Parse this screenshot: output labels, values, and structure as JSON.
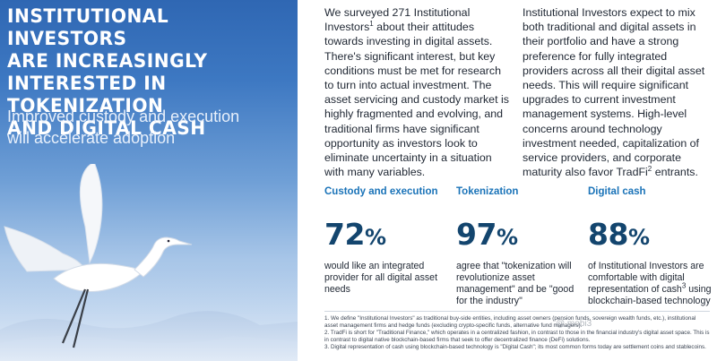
{
  "hero": {
    "title_lines": [
      "INSTITUTIONAL INVESTORS",
      "ARE INCREASINGLY",
      "INTERESTED IN TOKENIZATION",
      "AND DIGITAL CASH"
    ],
    "subtitle_lines": [
      "Improved custody and execution",
      "will accelerate adoption"
    ]
  },
  "intro": {
    "col1": {
      "p1": "We surveyed 271 Institutional Investors",
      "sup": "1",
      "p2": " about their attitudes towards investing in digital assets. There's significant interest, but key conditions must be met for research to turn into actual investment. The asset servicing and custody market is highly fragmented and evolving, and traditional firms have significant opportunity as investors look to eliminate uncertainty in a situation with many variables."
    },
    "col2": {
      "p1": "Institutional Investors expect to mix both traditional and digital assets in their portfolio and have a strong preference for fully integrated providers across all their digital asset needs. This will require significant upgrades to current investment management systems. High-level concerns around technology investment needed, capitalization of service providers, and corporate maturity also favor TradFi",
      "sup": "2",
      "p2": " entrants."
    }
  },
  "stats": [
    {
      "heading": "Custody and execution",
      "value": "72",
      "unit": "%",
      "desc": "would like an integrated provider for all digital asset needs"
    },
    {
      "heading": "Tokenization",
      "value": "97",
      "unit": "%",
      "desc": "agree that \"tokenization will revolutionize asset management\" and be \"good for the industry\""
    },
    {
      "heading": "Digital cash",
      "value": "88",
      "unit": "%",
      "desc_p1": "of Institutional Investors are comfortable with digital representation of cash",
      "desc_sup": "3",
      "desc_p2": " using blockchain-based technology"
    }
  ],
  "footnotes": [
    "1. We define \"Institutional Investors\" as traditional buy-side entities, including asset owners (pension funds, sovereign wealth funds, etc.), institutional asset management firms and hedge funds (excluding crypto-specific funds, alternative fund managers).",
    "2. TradFi is short for \"Traditional Finance,\" which operates in a centralized fashion, in contrast to those in the financial industry's digital asset space. This is in contrast to digital native blockchain-based firms that seek to offer decentralized finance (DeFi) solutions.",
    "3. Digital representation of cash using blockchain-based technology is \"Digital Cash\"; its most common forms today are settlement coins and stablecoins."
  ],
  "watermark": "@ mobi3",
  "colors": {
    "accent": "#1a73b8",
    "stat_value": "#13456e",
    "hero_top": "#2f67b3"
  }
}
